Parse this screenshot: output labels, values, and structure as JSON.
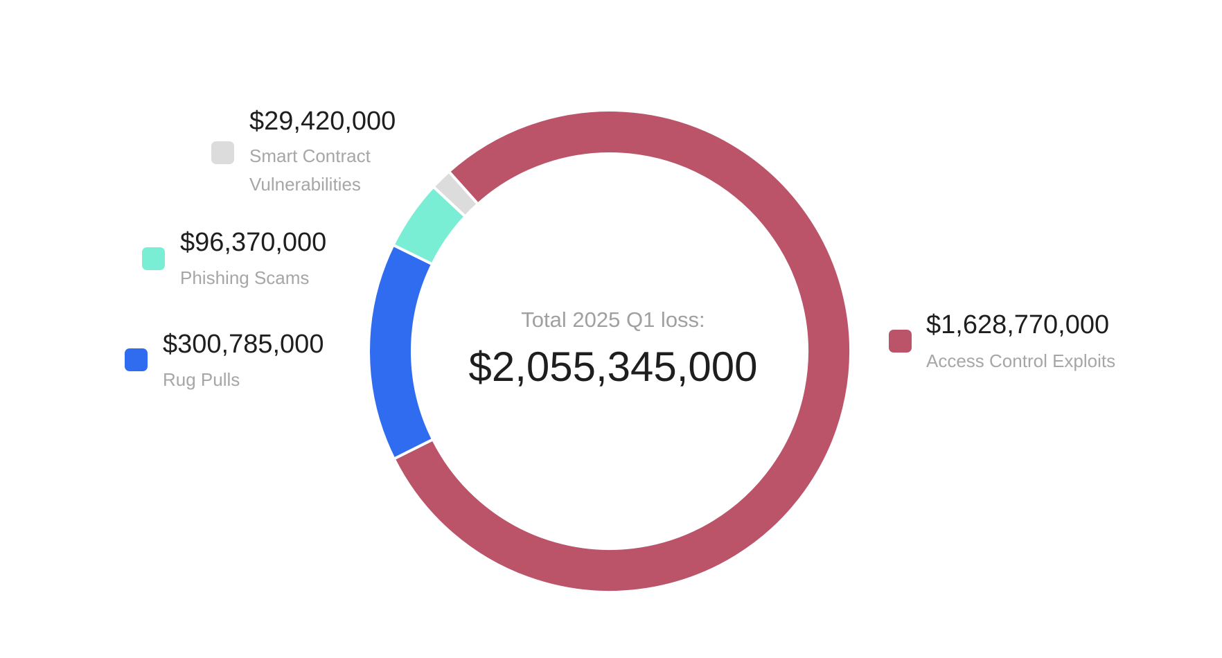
{
  "chart_data": {
    "type": "pie",
    "variant": "donut",
    "center": {
      "label": "Total 2025 Q1 loss:",
      "value": "$2,055,345,000"
    },
    "slices": [
      {
        "name": "Access Control Exploits",
        "name_lines": [
          "Access Control Exploits"
        ],
        "value": 1628770000,
        "value_label": "$1,628,770,000",
        "color": "#bb5369"
      },
      {
        "name": "Rug Pulls",
        "name_lines": [
          "Rug Pulls"
        ],
        "value": 300785000,
        "value_label": "$300,785,000",
        "color": "#306cf0"
      },
      {
        "name": "Phishing Scams",
        "name_lines": [
          "Phishing Scams"
        ],
        "value": 96370000,
        "value_label": "$96,370,000",
        "color": "#7aeed5"
      },
      {
        "name": "Smart Contract Vulnerabilities",
        "name_lines": [
          "Smart Contract",
          "Vulnerabilities"
        ],
        "value": 29420000,
        "value_label": "$29,420,000",
        "color": "#dcdcdc"
      }
    ]
  }
}
